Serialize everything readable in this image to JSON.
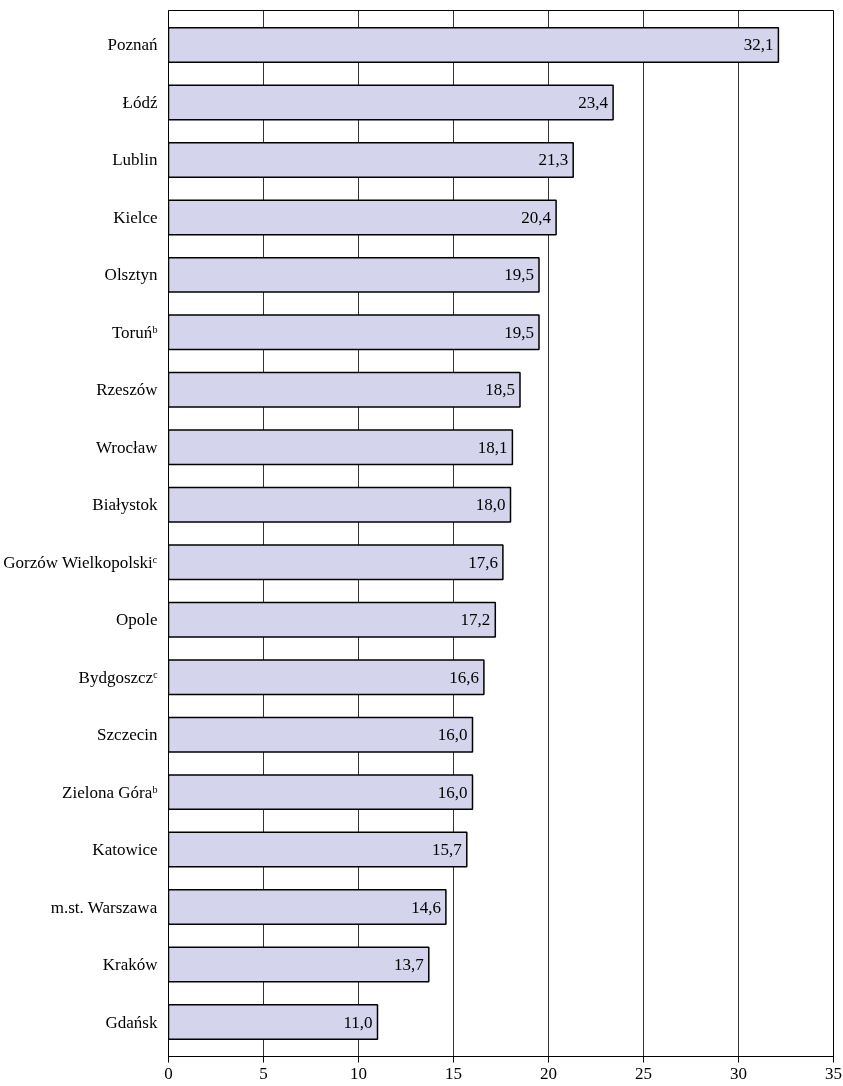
{
  "chart_data": {
    "type": "bar",
    "orientation": "horizontal",
    "categories": [
      "Poznań",
      "Łódź",
      "Lublin",
      "Kielce",
      "Olsztyn",
      "Toruńᵇ",
      "Rzeszów",
      "Wrocław",
      "Białystok",
      "Gorzów Wielkopolskiᶜ",
      "Opole",
      "Bydgoszczᶜ",
      "Szczecin",
      "Zielona Góraᵇ",
      "Katowice",
      "m.st. Warszawa",
      "Kraków",
      "Gdańsk"
    ],
    "values": [
      32.1,
      23.4,
      21.3,
      20.4,
      19.5,
      19.5,
      18.5,
      18.1,
      18.0,
      17.6,
      17.2,
      16.6,
      16.0,
      16.0,
      15.7,
      14.6,
      13.7,
      11.0
    ],
    "value_labels": [
      "32,1",
      "23,4",
      "21,3",
      "20,4",
      "19,5",
      "19,5",
      "18,5",
      "18,1",
      "18,0",
      "17,6",
      "17,2",
      "16,6",
      "16,0",
      "16,0",
      "15,7",
      "14,6",
      "13,7",
      "11,0"
    ],
    "color": "#d4d4ec",
    "xlim": [
      0,
      35
    ],
    "xticks": [
      0,
      5,
      10,
      15,
      20,
      25,
      30,
      35
    ],
    "grid": "x"
  }
}
